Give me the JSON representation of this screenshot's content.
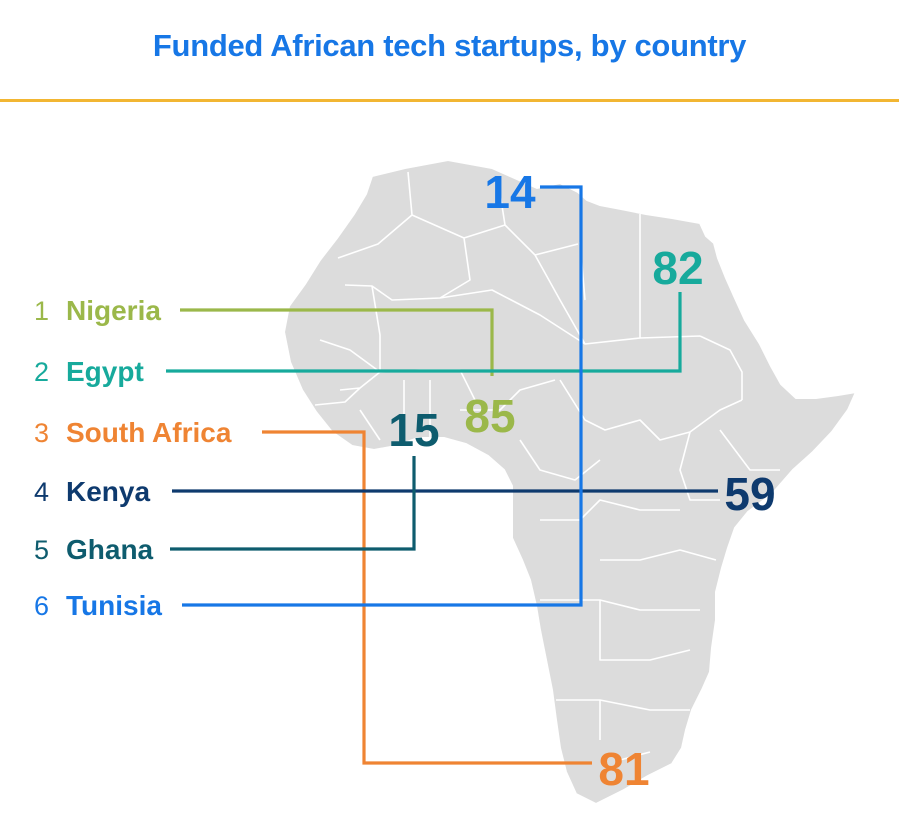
{
  "title": "Funded African tech startups, by country",
  "colors": {
    "title": "#1777e6",
    "rule": "#f2b632",
    "map_fill": "#dcdcdc",
    "map_border": "#ffffff"
  },
  "chart_data": {
    "type": "bar",
    "title": "Funded African tech startups, by country",
    "categories": [
      "Nigeria",
      "Egypt",
      "South Africa",
      "Kenya",
      "Ghana",
      "Tunisia"
    ],
    "ranks": [
      "1",
      "2",
      "3",
      "4",
      "5",
      "6"
    ],
    "values": [
      85,
      82,
      81,
      59,
      15,
      14
    ],
    "value_labels": [
      "85",
      "82",
      "81",
      "59",
      "15",
      "14"
    ],
    "series_colors": [
      "#9bb84a",
      "#17aa9c",
      "#ef8433",
      "#0e3a6e",
      "#0e5c6e",
      "#1777e6"
    ]
  }
}
